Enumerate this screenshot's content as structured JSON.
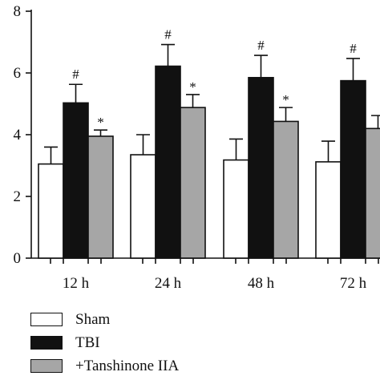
{
  "chart_data": {
    "type": "bar",
    "categories": [
      "12 h",
      "24 h",
      "48 h",
      "72 h"
    ],
    "series": [
      {
        "name": "Sham",
        "values": [
          3.05,
          3.35,
          3.18,
          3.12
        ],
        "errors": [
          0.55,
          0.65,
          0.68,
          0.67
        ],
        "marks": [
          "",
          "",
          "",
          ""
        ],
        "color": "#ffffff"
      },
      {
        "name": "TBI",
        "values": [
          5.03,
          6.22,
          5.85,
          5.75
        ],
        "errors": [
          0.6,
          0.7,
          0.72,
          0.72
        ],
        "marks": [
          "#",
          "#",
          "#",
          "#"
        ],
        "color": "#111111"
      },
      {
        "name": "+Tanshinone IIA",
        "values": [
          3.95,
          4.88,
          4.43,
          4.2
        ],
        "errors": [
          0.2,
          0.42,
          0.45,
          0.42
        ],
        "marks": [
          "*",
          "*",
          "*",
          ""
        ],
        "color": "#a6a6a6"
      }
    ],
    "yticks": [
      0,
      2,
      4,
      6,
      8
    ],
    "ylim": [
      0,
      8
    ],
    "title": "",
    "xlabel": "",
    "ylabel": "",
    "legend_position": "bottom-left"
  }
}
